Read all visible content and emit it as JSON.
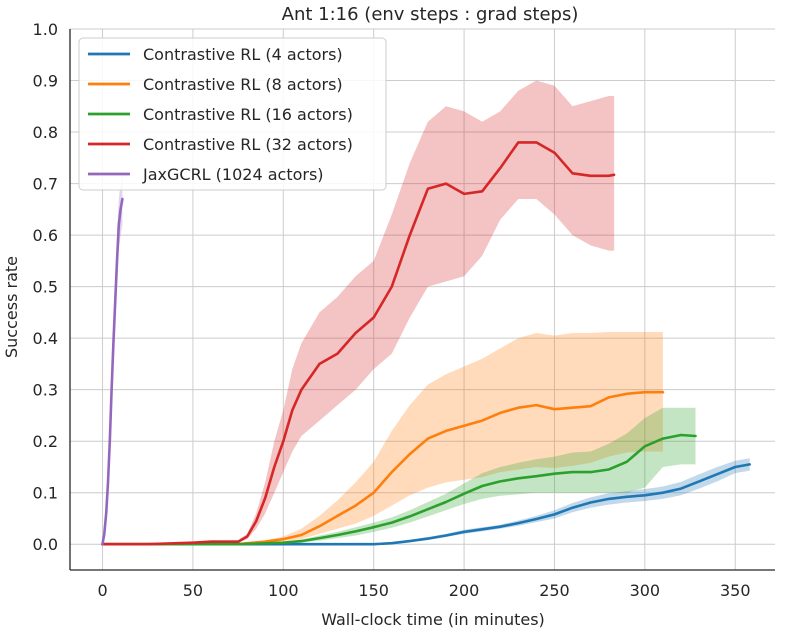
{
  "chart_data": {
    "type": "line",
    "title": "Ant 1:16 (env steps : grad steps)",
    "xlabel": "Wall-clock time (in minutes)",
    "ylabel": "Success rate",
    "xlim": [
      -18,
      372
    ],
    "ylim": [
      -0.05,
      1.0
    ],
    "xticks": [
      0,
      50,
      100,
      150,
      200,
      250,
      300,
      350
    ],
    "xtick_labels": [
      "0",
      "50",
      "100",
      "150",
      "200",
      "250",
      "300",
      "350"
    ],
    "yticks": [
      0.0,
      0.1,
      0.2,
      0.3,
      0.4,
      0.5,
      0.6,
      0.7,
      0.8,
      0.9,
      1.0
    ],
    "ytick_labels": [
      "0.0",
      "0.1",
      "0.2",
      "0.3",
      "0.4",
      "0.5",
      "0.6",
      "0.7",
      "0.8",
      "0.9",
      "1.0"
    ],
    "grid": true,
    "legend_position": "top-left",
    "series": [
      {
        "name": "Contrastive RL (4 actors)",
        "color": "#1f77b4",
        "x": [
          0,
          25,
          50,
          75,
          100,
          125,
          150,
          160,
          170,
          180,
          190,
          200,
          210,
          220,
          230,
          240,
          250,
          260,
          270,
          280,
          290,
          300,
          310,
          320,
          330,
          340,
          350,
          358
        ],
        "y": [
          0,
          0,
          0,
          0,
          0,
          0,
          0,
          0.002,
          0.006,
          0.011,
          0.017,
          0.024,
          0.029,
          0.034,
          0.041,
          0.049,
          0.058,
          0.071,
          0.081,
          0.088,
          0.092,
          0.095,
          0.1,
          0.108,
          0.122,
          0.136,
          0.15,
          0.155
        ],
        "lower": [
          0,
          0,
          0,
          0,
          0,
          0,
          0,
          0,
          0.004,
          0.008,
          0.014,
          0.02,
          0.025,
          0.03,
          0.036,
          0.043,
          0.05,
          0.062,
          0.071,
          0.077,
          0.081,
          0.084,
          0.088,
          0.095,
          0.108,
          0.122,
          0.138,
          0.143
        ],
        "upper": [
          0,
          0,
          0,
          0,
          0,
          0,
          0,
          0.004,
          0.008,
          0.014,
          0.02,
          0.028,
          0.033,
          0.038,
          0.046,
          0.055,
          0.066,
          0.08,
          0.091,
          0.099,
          0.103,
          0.107,
          0.112,
          0.121,
          0.136,
          0.15,
          0.162,
          0.167
        ]
      },
      {
        "name": "Contrastive RL (8 actors)",
        "color": "#ff7f0e",
        "x": [
          0,
          25,
          50,
          75,
          80,
          90,
          100,
          110,
          120,
          130,
          140,
          150,
          160,
          170,
          180,
          190,
          200,
          210,
          220,
          230,
          240,
          250,
          260,
          270,
          280,
          290,
          300,
          310
        ],
        "y": [
          0,
          0,
          0,
          0,
          0.002,
          0.005,
          0.01,
          0.018,
          0.035,
          0.055,
          0.075,
          0.1,
          0.14,
          0.175,
          0.205,
          0.22,
          0.23,
          0.24,
          0.255,
          0.265,
          0.27,
          0.262,
          0.265,
          0.268,
          0.285,
          0.292,
          0.295,
          0.295
        ],
        "lower": [
          0,
          0,
          0,
          0,
          0,
          0.003,
          0.006,
          0.01,
          0.02,
          0.03,
          0.04,
          0.055,
          0.075,
          0.095,
          0.11,
          0.12,
          0.125,
          0.13,
          0.14,
          0.145,
          0.15,
          0.148,
          0.152,
          0.158,
          0.17,
          0.178,
          0.18,
          0.18
        ],
        "upper": [
          0,
          0,
          0,
          0,
          0.004,
          0.008,
          0.015,
          0.03,
          0.055,
          0.085,
          0.12,
          0.16,
          0.22,
          0.27,
          0.31,
          0.33,
          0.345,
          0.36,
          0.38,
          0.4,
          0.41,
          0.405,
          0.41,
          0.41,
          0.412,
          0.412,
          0.412,
          0.412
        ]
      },
      {
        "name": "Contrastive RL (16 actors)",
        "color": "#2ca02c",
        "x": [
          0,
          25,
          50,
          75,
          100,
          110,
          120,
          130,
          140,
          150,
          160,
          170,
          180,
          190,
          200,
          210,
          220,
          230,
          240,
          250,
          260,
          270,
          280,
          290,
          300,
          310,
          320,
          328
        ],
        "y": [
          0,
          0,
          0,
          0,
          0.003,
          0.006,
          0.012,
          0.018,
          0.025,
          0.033,
          0.042,
          0.054,
          0.068,
          0.082,
          0.098,
          0.113,
          0.122,
          0.128,
          0.132,
          0.137,
          0.14,
          0.14,
          0.145,
          0.16,
          0.19,
          0.205,
          0.212,
          0.21
        ],
        "lower": [
          0,
          0,
          0,
          0,
          0.001,
          0.003,
          0.007,
          0.012,
          0.017,
          0.024,
          0.032,
          0.042,
          0.054,
          0.066,
          0.078,
          0.088,
          0.094,
          0.097,
          0.1,
          0.1,
          0.1,
          0.1,
          0.1,
          0.1,
          0.11,
          0.15,
          0.155,
          0.155
        ],
        "upper": [
          0,
          0,
          0,
          0,
          0.005,
          0.009,
          0.017,
          0.024,
          0.033,
          0.042,
          0.052,
          0.066,
          0.082,
          0.098,
          0.118,
          0.138,
          0.15,
          0.158,
          0.165,
          0.17,
          0.178,
          0.18,
          0.195,
          0.215,
          0.245,
          0.265,
          0.265,
          0.265
        ]
      },
      {
        "name": "Contrastive RL (32 actors)",
        "color": "#d62728",
        "x": [
          0,
          25,
          50,
          60,
          70,
          75,
          80,
          85,
          90,
          95,
          100,
          105,
          110,
          120,
          130,
          140,
          150,
          160,
          170,
          180,
          190,
          200,
          210,
          220,
          230,
          240,
          250,
          260,
          270,
          280,
          283
        ],
        "y": [
          0,
          0,
          0.003,
          0.005,
          0.005,
          0.005,
          0.015,
          0.045,
          0.09,
          0.15,
          0.2,
          0.26,
          0.3,
          0.35,
          0.37,
          0.41,
          0.44,
          0.5,
          0.6,
          0.69,
          0.7,
          0.68,
          0.685,
          0.73,
          0.78,
          0.78,
          0.76,
          0.72,
          0.715,
          0.715,
          0.717
        ],
        "lower": [
          0,
          0,
          0.001,
          0.002,
          0.003,
          0.003,
          0.01,
          0.03,
          0.06,
          0.1,
          0.14,
          0.18,
          0.21,
          0.24,
          0.27,
          0.3,
          0.34,
          0.37,
          0.44,
          0.5,
          0.51,
          0.52,
          0.56,
          0.63,
          0.67,
          0.67,
          0.64,
          0.6,
          0.58,
          0.57,
          0.57
        ],
        "upper": [
          0,
          0,
          0.005,
          0.008,
          0.008,
          0.008,
          0.02,
          0.06,
          0.12,
          0.2,
          0.26,
          0.34,
          0.39,
          0.45,
          0.48,
          0.52,
          0.55,
          0.64,
          0.74,
          0.82,
          0.85,
          0.84,
          0.82,
          0.84,
          0.88,
          0.9,
          0.89,
          0.85,
          0.86,
          0.87,
          0.87
        ]
      },
      {
        "name": "JaxGCRL (1024 actors)",
        "color": "#9467bd",
        "x": [
          0,
          1,
          2,
          3,
          4,
          5,
          6,
          7,
          8,
          9,
          10,
          11
        ],
        "y": [
          0,
          0.02,
          0.06,
          0.12,
          0.2,
          0.3,
          0.39,
          0.47,
          0.55,
          0.62,
          0.65,
          0.67
        ],
        "lower": [
          0,
          0.01,
          0.04,
          0.09,
          0.16,
          0.25,
          0.34,
          0.42,
          0.5,
          0.57,
          0.6,
          0.62
        ],
        "upper": [
          0,
          0.03,
          0.08,
          0.15,
          0.24,
          0.35,
          0.44,
          0.52,
          0.6,
          0.67,
          0.7,
          0.72
        ]
      }
    ]
  }
}
